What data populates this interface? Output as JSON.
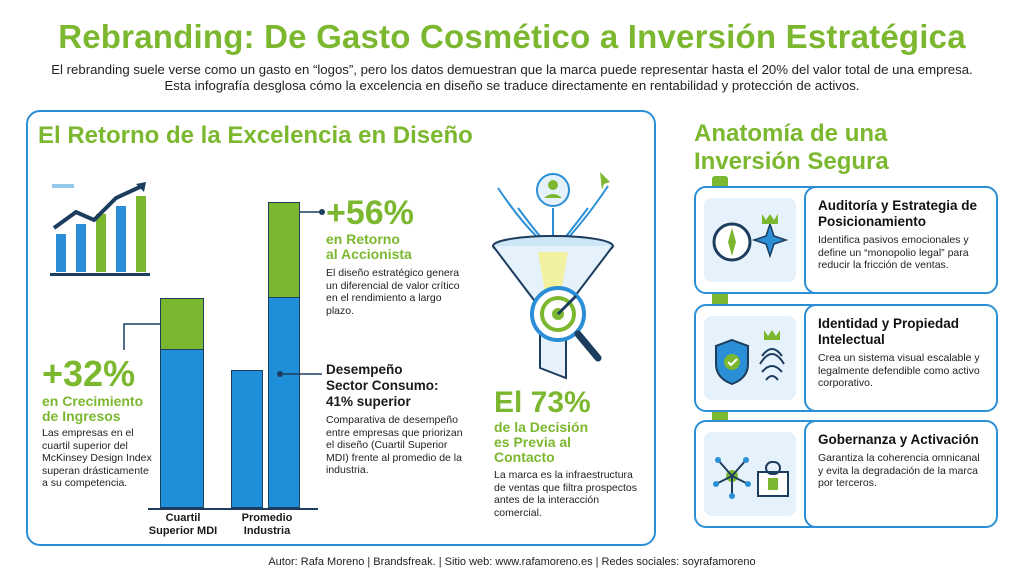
{
  "title": "Rebranding: De Gasto Cosmético a Inversión Estratégica",
  "subtitle_line1": "El rebranding suele verse como un gasto en “logos”, pero los datos demuestran que la marca puede representar hasta el 20% del valor total de una empresa.",
  "subtitle_line2": "Esta infografía desglosa cómo la excelencia en diseño se traduce directamente en rentabilidad y protección de activos.",
  "left_panel": {
    "title": "El Retorno de la Excelencia en Diseño",
    "stat1": {
      "value": "+32%",
      "label_line1": "en Crecimiento",
      "label_line2": "de Ingresos",
      "desc": "Las empresas en el cuartil superior del McKinsey Design Index superan drásticamente a su competencia."
    },
    "stat2": {
      "value": "+56%",
      "label_line1": "en Retorno",
      "label_line2": "al Accionista",
      "desc": "El diseño estratégico genera un diferencial de valor crítico en el rendimiento a largo plazo."
    },
    "stat3": {
      "heading_line1": "Desempeño",
      "heading_line2": "Sector Consumo:",
      "heading_line3": "41% superior",
      "desc": "Comparativa de desempeño entre empresas que priorizan el diseño (Cuartil Superior MDI) frente al promedio de la industria."
    },
    "stat4": {
      "value": "El 73%",
      "label_line1": "de la Decisión",
      "label_line2": "es Previa al",
      "label_line3": "Contacto",
      "desc": "La marca es la infraestructura de ventas que filtra prospectos antes de la interacción comercial."
    },
    "bar_labels": {
      "a_line1": "Cuartil",
      "a_line2": "Superior MDI",
      "b_line1": "Promedio",
      "b_line2": "Industria"
    }
  },
  "right_panel": {
    "title_line1": "Anatomía de una",
    "title_line2": "Inversión Segura",
    "cards": [
      {
        "heading": "Auditoría y Estrategia de Posicionamiento",
        "desc": "Identifica pasivos emocionales y define un “monopolio legal” para reducir la fricción de ventas."
      },
      {
        "heading": "Identidad y Propiedad Intelectual",
        "desc": "Crea un sistema visual escalable y legalmente defendible como activo corporativo."
      },
      {
        "heading": "Gobernanza y Activación",
        "desc": "Garantiza la coherencia omnicanal y evita la degradación de la marca por terceros."
      }
    ]
  },
  "footer": "Autor: Rafa Moreno | Brandsfreak. | Sitio web: www.rafamoreno.es | Redes sociales: soyrafamoreno",
  "colors": {
    "green": "#7cb82f",
    "blue": "#2a8fd6",
    "bar_blue": "#1e8fd8"
  }
}
